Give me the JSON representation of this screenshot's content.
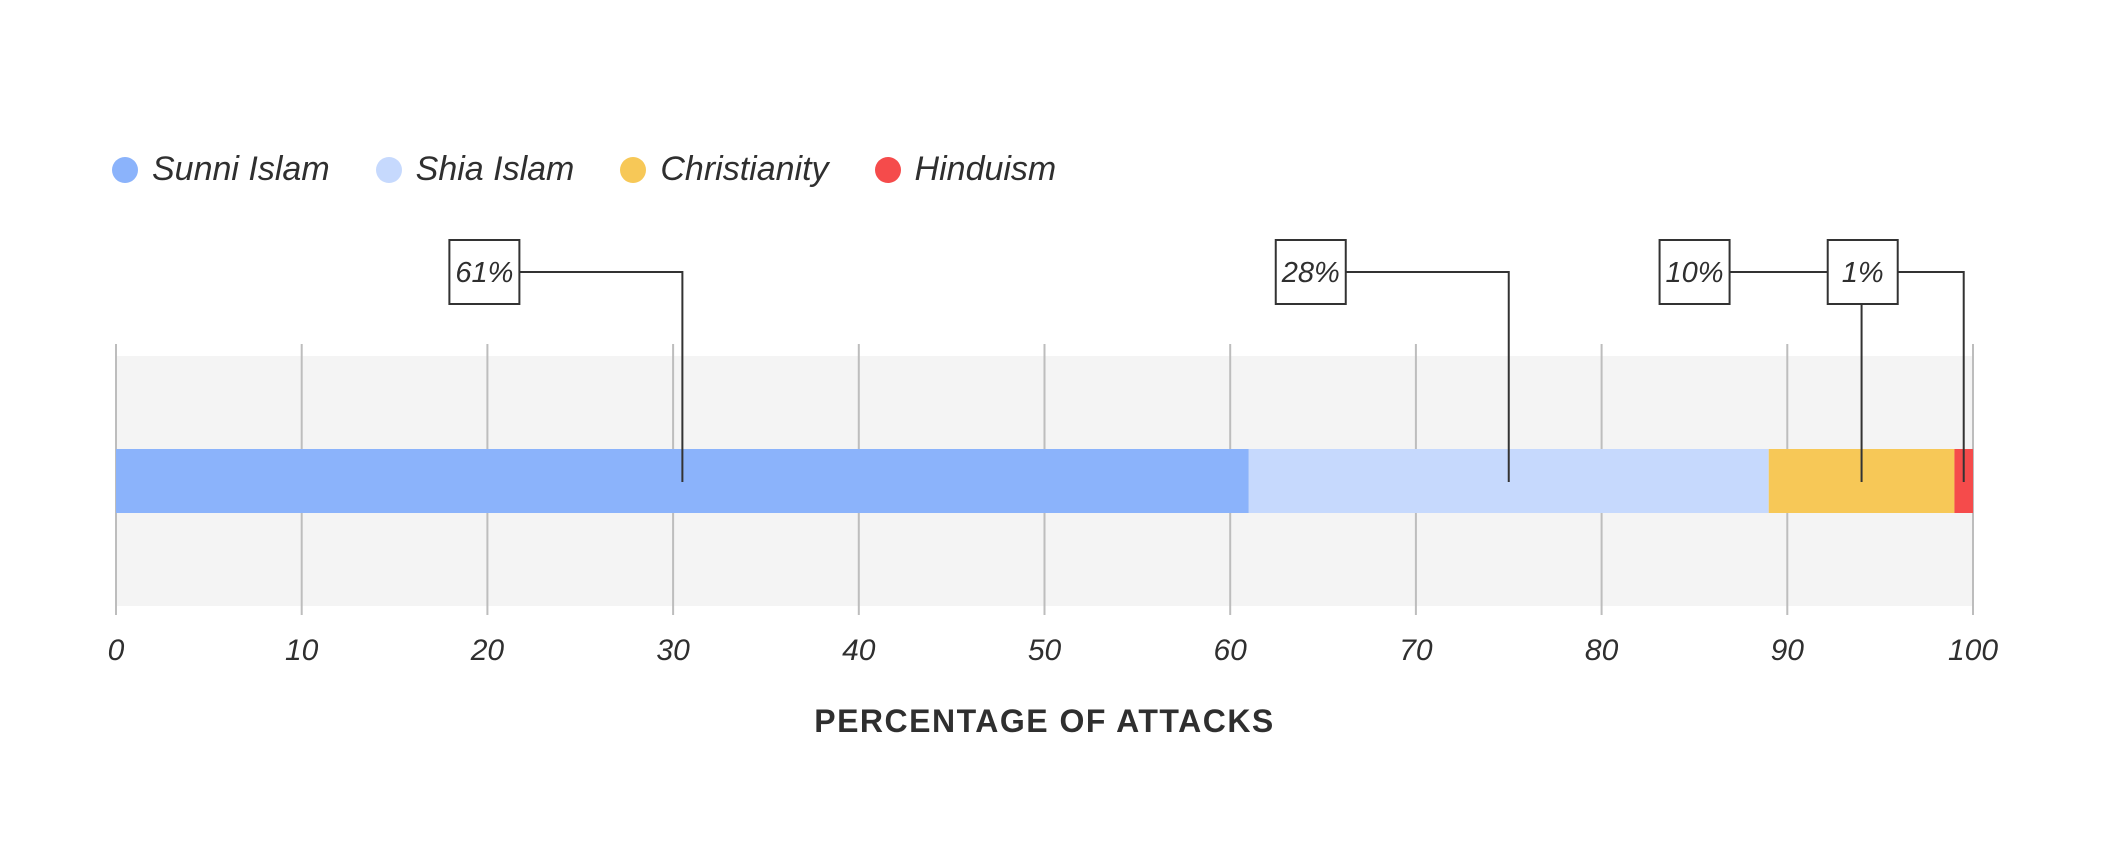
{
  "chart_data": {
    "type": "bar",
    "orientation": "horizontal",
    "stacked": true,
    "title": "",
    "xlabel": "PERCENTAGE OF ATTACKS",
    "ylabel": "",
    "xlim": [
      0,
      100
    ],
    "xticks": [
      0,
      10,
      20,
      30,
      40,
      50,
      60,
      70,
      80,
      90,
      100
    ],
    "grid": true,
    "legend_position": "top-left",
    "series": [
      {
        "name": "Sunni Islam",
        "value": 61,
        "label": "61%",
        "color": "#8bb3fb"
      },
      {
        "name": "Shia Islam",
        "value": 28,
        "label": "28%",
        "color": "#c6d9fd"
      },
      {
        "name": "Christianity",
        "value": 10,
        "label": "10%",
        "color": "#f7c857"
      },
      {
        "name": "Hinduism",
        "value": 1,
        "label": "1%",
        "color": "#f54b4b"
      }
    ],
    "colors": {
      "background_band": "#f4f4f4",
      "grid": "#bdbdbd",
      "text": "#2f2f2f",
      "callout": "#333333"
    }
  }
}
